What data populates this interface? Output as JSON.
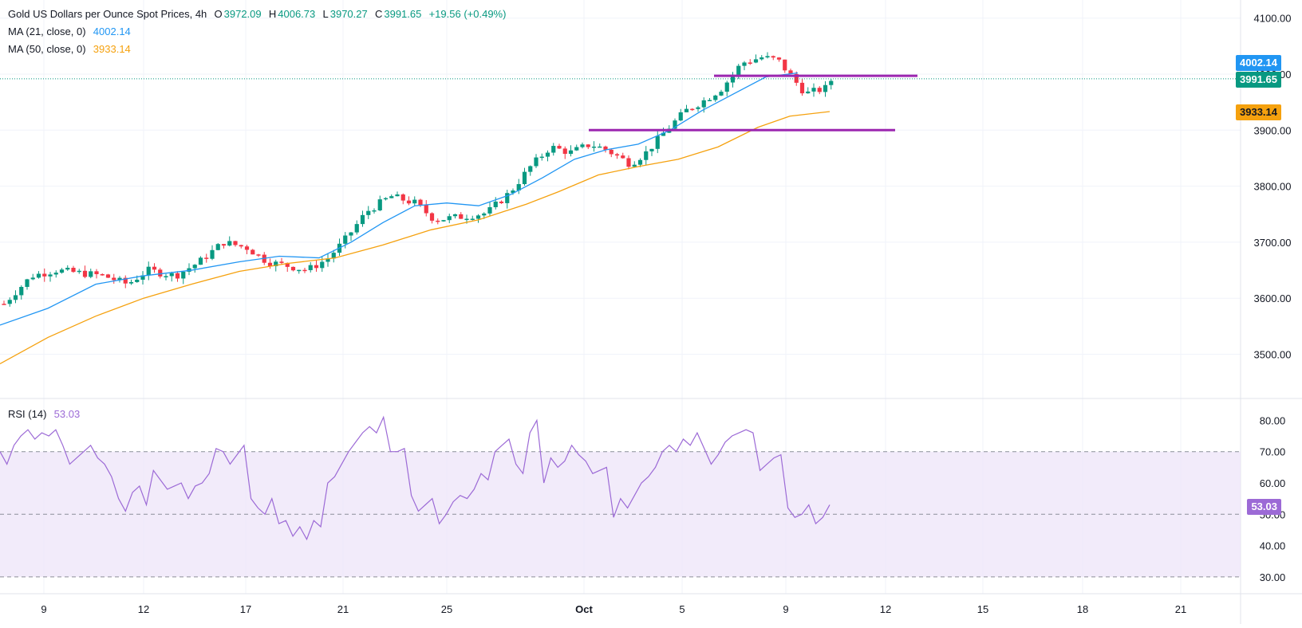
{
  "legend": {
    "title": "Gold US Dollars per Ounce Spot Prices, 4h",
    "o_label": "O",
    "o": "3972.09",
    "h_label": "H",
    "h": "4006.73",
    "l_label": "L",
    "l": "3970.27",
    "c_label": "C",
    "c": "3991.65",
    "change": "+19.56 (+0.49%)",
    "ma21_label": "MA (21, close, 0)",
    "ma21_value": "4002.14",
    "ma50_label": "MA (50, close, 0)",
    "ma50_value": "3933.14",
    "rsi_label": "RSI (14)",
    "rsi_value": "53.03"
  },
  "badges": {
    "ma21": "4002.14",
    "close": "3991.65",
    "ma50": "3933.14",
    "rsi": "53.03"
  },
  "colors": {
    "up": "#089981",
    "down": "#f23645",
    "ma21": "#2196f3",
    "ma50": "#f5a10e",
    "rsi": "#9c6ad6",
    "levels": "#9c27b0",
    "grid": "#f0f3fa",
    "axis_text": "#131722"
  },
  "chart_data": [
    {
      "type": "candlestick",
      "title": "Gold US Dollars per Ounce Spot Prices, 4h",
      "ylim": [
        3420,
        4140
      ],
      "y_ticks": [
        "3500.00",
        "3600.00",
        "3700.00",
        "3800.00",
        "3900.00",
        "4000.00",
        "4100.00"
      ],
      "x_ticks": [
        "9",
        "12",
        "17",
        "21",
        "25",
        "Oct",
        "5",
        "9",
        "12",
        "15",
        "18",
        "21"
      ],
      "grid": true,
      "horizontal_levels": [
        3997,
        3900
      ],
      "series": [
        {
          "name": "MA (21, close, 0)",
          "last": 4002.14
        },
        {
          "name": "MA (50, close, 0)",
          "last": 3933.14
        }
      ],
      "close_last": 3991.65
    },
    {
      "type": "line",
      "title": "RSI (14)",
      "ylim": [
        25,
        85
      ],
      "y_ticks": [
        "30.00",
        "40.00",
        "50.00",
        "60.00",
        "70.00",
        "80.00"
      ],
      "band": [
        30,
        70
      ],
      "midline": 50,
      "series": [
        {
          "name": "RSI (14)",
          "values": [
            70,
            66,
            72,
            75,
            77,
            74,
            76,
            75,
            77,
            72,
            66,
            68,
            70,
            72,
            68,
            66,
            62,
            55,
            51,
            57,
            59,
            53,
            64,
            61,
            58,
            59,
            60,
            55,
            59,
            60,
            63,
            71,
            70,
            66,
            69,
            72,
            55,
            52,
            50,
            55,
            47,
            48,
            43,
            46,
            42,
            48,
            46,
            60,
            62,
            66,
            70,
            73,
            76,
            78,
            76,
            81,
            70,
            70,
            71,
            56,
            51,
            53,
            55,
            47,
            50,
            54,
            56,
            55,
            58,
            63,
            61,
            70,
            72,
            74,
            66,
            63,
            76,
            80,
            60,
            68,
            65,
            67,
            72,
            69,
            67,
            63,
            64,
            65,
            49,
            55,
            52,
            56,
            60,
            62,
            65,
            70,
            72,
            70,
            74,
            72,
            76,
            71,
            66,
            69,
            73,
            75,
            76,
            77,
            76,
            64,
            66,
            68,
            69,
            52,
            49,
            50,
            53,
            47,
            49,
            53.03
          ]
        }
      ]
    }
  ]
}
